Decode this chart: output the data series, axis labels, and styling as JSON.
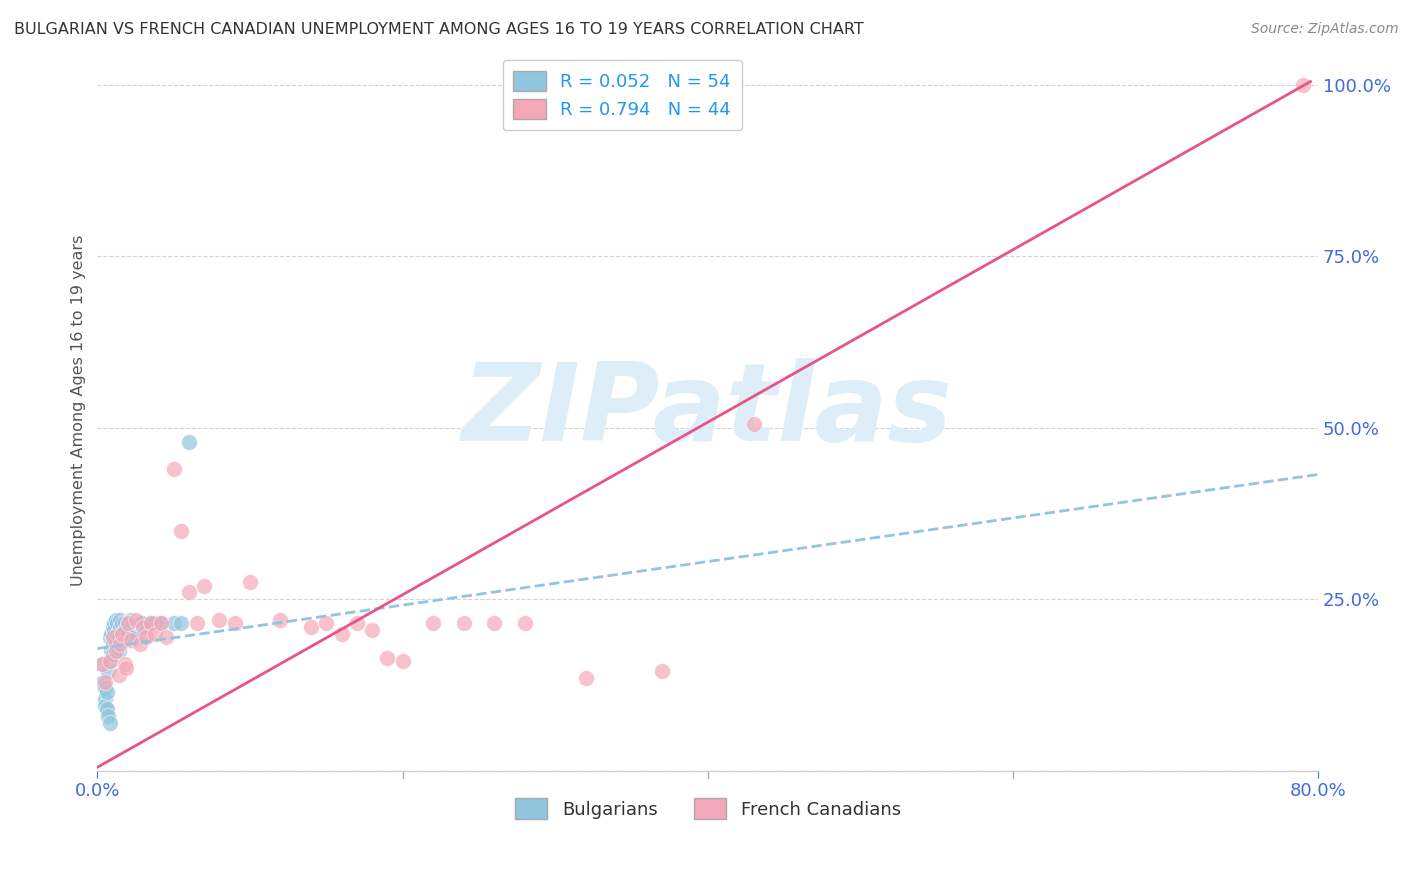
{
  "title": "BULGARIAN VS FRENCH CANADIAN UNEMPLOYMENT AMONG AGES 16 TO 19 YEARS CORRELATION CHART",
  "source": "Source: ZipAtlas.com",
  "ylabel": "Unemployment Among Ages 16 to 19 years",
  "watermark_text": "ZIPatlas",
  "xlim": [
    0.0,
    0.8
  ],
  "ylim": [
    0.0,
    1.05
  ],
  "xticks": [
    0.0,
    0.2,
    0.4,
    0.6,
    0.8
  ],
  "xtick_labels": [
    "0.0%",
    "",
    "",
    "",
    "80.0%"
  ],
  "yticks": [
    0.0,
    0.25,
    0.5,
    0.75,
    1.0
  ],
  "ytick_labels": [
    "",
    "25.0%",
    "50.0%",
    "75.0%",
    "100.0%"
  ],
  "blue_R": 0.052,
  "blue_N": 54,
  "pink_R": 0.794,
  "pink_N": 44,
  "blue_scatter_color": "#92c5de",
  "pink_scatter_color": "#f4a7b9",
  "blue_line_color": "#92c5de",
  "pink_line_color": "#e8538a",
  "axis_tick_color": "#4169E1",
  "grid_color": "#d3d3d3",
  "title_color": "#333333",
  "source_color": "#888888",
  "watermark_color": "#ddeef8",
  "legend_text_color": "#2196F3",
  "blue_scatter_x": [
    0.003,
    0.004,
    0.005,
    0.005,
    0.005,
    0.006,
    0.006,
    0.007,
    0.007,
    0.008,
    0.008,
    0.008,
    0.009,
    0.009,
    0.01,
    0.01,
    0.01,
    0.011,
    0.011,
    0.012,
    0.012,
    0.012,
    0.013,
    0.013,
    0.014,
    0.014,
    0.015,
    0.015,
    0.016,
    0.016,
    0.017,
    0.018,
    0.018,
    0.019,
    0.02,
    0.02,
    0.021,
    0.022,
    0.022,
    0.023,
    0.024,
    0.025,
    0.026,
    0.027,
    0.028,
    0.029,
    0.03,
    0.032,
    0.035,
    0.038,
    0.042,
    0.05,
    0.055,
    0.06
  ],
  "blue_scatter_y": [
    0.155,
    0.13,
    0.12,
    0.105,
    0.095,
    0.115,
    0.09,
    0.145,
    0.08,
    0.07,
    0.16,
    0.195,
    0.175,
    0.2,
    0.185,
    0.17,
    0.21,
    0.215,
    0.205,
    0.22,
    0.195,
    0.185,
    0.215,
    0.2,
    0.195,
    0.175,
    0.22,
    0.21,
    0.215,
    0.2,
    0.19,
    0.215,
    0.205,
    0.195,
    0.215,
    0.2,
    0.215,
    0.22,
    0.21,
    0.195,
    0.215,
    0.2,
    0.215,
    0.215,
    0.215,
    0.215,
    0.195,
    0.21,
    0.215,
    0.215,
    0.215,
    0.215,
    0.215,
    0.48
  ],
  "pink_scatter_x": [
    0.003,
    0.005,
    0.008,
    0.01,
    0.012,
    0.014,
    0.015,
    0.016,
    0.018,
    0.019,
    0.02,
    0.022,
    0.025,
    0.028,
    0.03,
    0.032,
    0.035,
    0.038,
    0.042,
    0.045,
    0.05,
    0.055,
    0.06,
    0.065,
    0.07,
    0.08,
    0.09,
    0.1,
    0.12,
    0.14,
    0.15,
    0.16,
    0.17,
    0.18,
    0.19,
    0.2,
    0.22,
    0.24,
    0.26,
    0.28,
    0.32,
    0.37,
    0.43,
    0.79
  ],
  "pink_scatter_y": [
    0.155,
    0.13,
    0.16,
    0.195,
    0.175,
    0.14,
    0.185,
    0.2,
    0.155,
    0.15,
    0.215,
    0.19,
    0.22,
    0.185,
    0.21,
    0.195,
    0.215,
    0.2,
    0.215,
    0.195,
    0.44,
    0.35,
    0.26,
    0.215,
    0.27,
    0.22,
    0.215,
    0.275,
    0.22,
    0.21,
    0.215,
    0.2,
    0.215,
    0.205,
    0.165,
    0.16,
    0.215,
    0.215,
    0.215,
    0.215,
    0.135,
    0.145,
    0.505,
    1.0
  ],
  "blue_line_x0": 0.0,
  "blue_line_x1": 0.8,
  "blue_line_y0": 0.178,
  "blue_line_y1": 0.432,
  "pink_line_x0": 0.0,
  "pink_line_x1": 0.795,
  "pink_line_y0": 0.005,
  "pink_line_y1": 1.005
}
